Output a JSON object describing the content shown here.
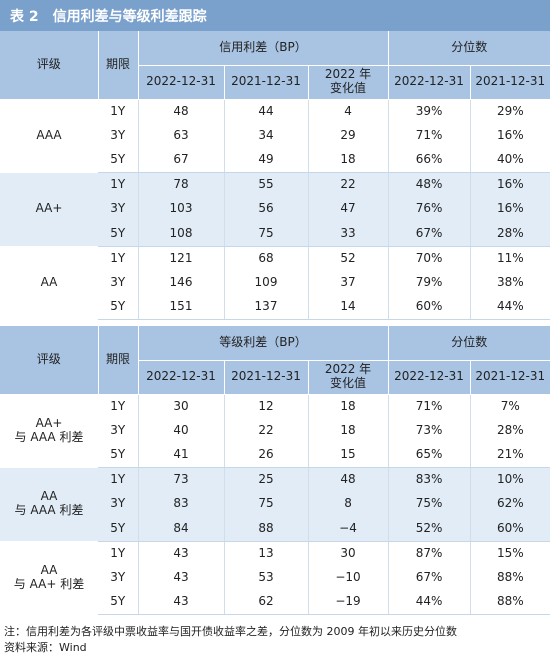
{
  "title": {
    "number": "表 2",
    "text": "信用利差与等级利差跟踪"
  },
  "table1": {
    "h_grade": "评级",
    "h_term": "期限",
    "h_group1": "信用利差（BP）",
    "h_group2": "分位数",
    "cols": [
      "2022-12-31",
      "2021-12-31",
      "2022 年\n变化值",
      "2022-12-31",
      "2021-12-31"
    ],
    "groups": [
      {
        "grade": "AAA",
        "rows": [
          {
            "term": "1Y",
            "v": [
              "48",
              "44",
              "4",
              "39%",
              "29%"
            ]
          },
          {
            "term": "3Y",
            "v": [
              "63",
              "34",
              "29",
              "71%",
              "16%"
            ]
          },
          {
            "term": "5Y",
            "v": [
              "67",
              "49",
              "18",
              "66%",
              "40%"
            ]
          }
        ]
      },
      {
        "grade": "AA+",
        "rows": [
          {
            "term": "1Y",
            "v": [
              "78",
              "55",
              "22",
              "48%",
              "16%"
            ]
          },
          {
            "term": "3Y",
            "v": [
              "103",
              "56",
              "47",
              "76%",
              "16%"
            ]
          },
          {
            "term": "5Y",
            "v": [
              "108",
              "75",
              "33",
              "67%",
              "28%"
            ]
          }
        ]
      },
      {
        "grade": "AA",
        "rows": [
          {
            "term": "1Y",
            "v": [
              "121",
              "68",
              "52",
              "70%",
              "11%"
            ]
          },
          {
            "term": "3Y",
            "v": [
              "146",
              "109",
              "37",
              "79%",
              "38%"
            ]
          },
          {
            "term": "5Y",
            "v": [
              "151",
              "137",
              "14",
              "60%",
              "44%"
            ]
          }
        ]
      }
    ]
  },
  "table2": {
    "h_grade": "评级",
    "h_term": "期限",
    "h_group1": "等级利差（BP）",
    "h_group2": "分位数",
    "cols": [
      "2022-12-31",
      "2021-12-31",
      "2022 年\n变化值",
      "2022-12-31",
      "2021-12-31"
    ],
    "groups": [
      {
        "grade": "AA+\n与 AAA 利差",
        "rows": [
          {
            "term": "1Y",
            "v": [
              "30",
              "12",
              "18",
              "71%",
              "7%"
            ]
          },
          {
            "term": "3Y",
            "v": [
              "40",
              "22",
              "18",
              "73%",
              "28%"
            ]
          },
          {
            "term": "5Y",
            "v": [
              "41",
              "26",
              "15",
              "65%",
              "21%"
            ]
          }
        ]
      },
      {
        "grade": "AA\n与 AAA 利差",
        "rows": [
          {
            "term": "1Y",
            "v": [
              "73",
              "25",
              "48",
              "83%",
              "10%"
            ]
          },
          {
            "term": "3Y",
            "v": [
              "83",
              "75",
              "8",
              "75%",
              "62%"
            ]
          },
          {
            "term": "5Y",
            "v": [
              "84",
              "88",
              "−4",
              "52%",
              "60%"
            ]
          }
        ]
      },
      {
        "grade": "AA\n与 AA+ 利差",
        "rows": [
          {
            "term": "1Y",
            "v": [
              "43",
              "13",
              "30",
              "87%",
              "15%"
            ]
          },
          {
            "term": "3Y",
            "v": [
              "43",
              "53",
              "−10",
              "67%",
              "88%"
            ]
          },
          {
            "term": "5Y",
            "v": [
              "43",
              "62",
              "−19",
              "44%",
              "88%"
            ]
          }
        ]
      }
    ]
  },
  "notes": {
    "note": "注：信用利差为各评级中票收益率与国开债收益率之差，分位数为 2009 年初以来历史分位数",
    "source": "资料来源：Wind"
  }
}
